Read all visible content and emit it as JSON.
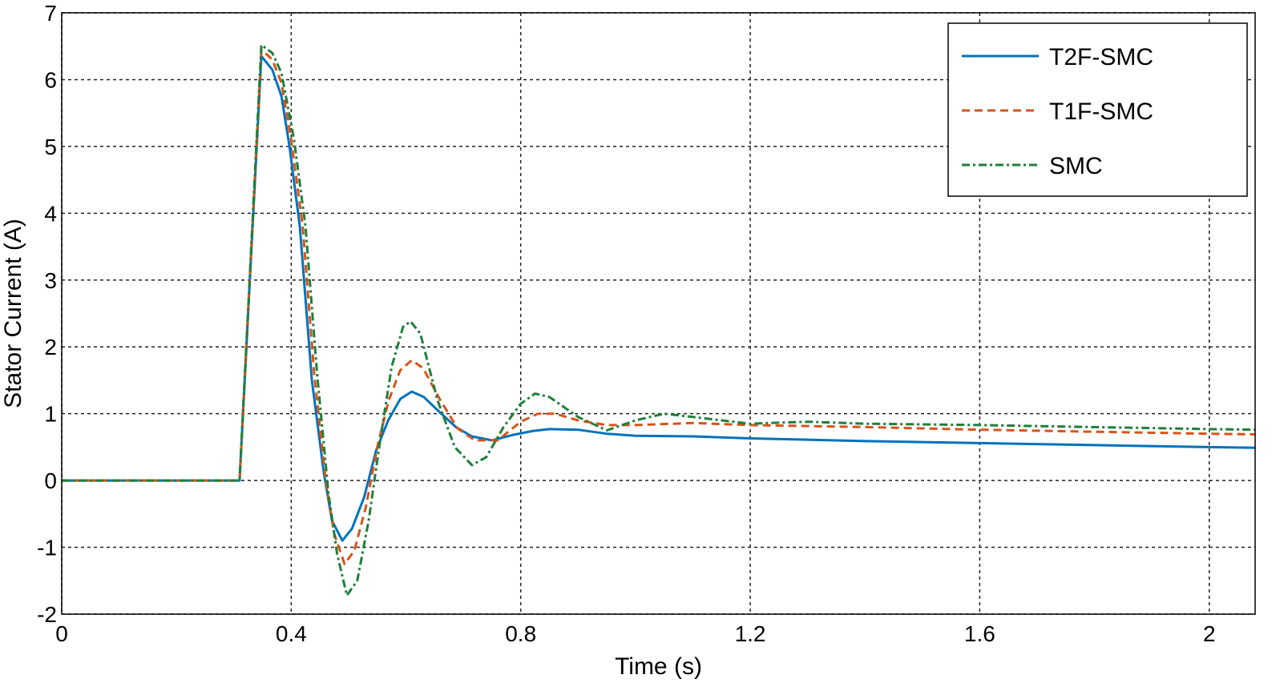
{
  "chart_data": {
    "type": "line",
    "title": "",
    "xlabel": "Time (s)",
    "ylabel": "Stator Current (A)",
    "xlim": [
      0,
      2.08
    ],
    "ylim": [
      -2,
      7
    ],
    "xticks": [
      0,
      0.4,
      0.8,
      1.2,
      1.6,
      2
    ],
    "xtick_labels": [
      "0",
      "0.4",
      "0.8",
      "1.2",
      "1.6",
      "2"
    ],
    "yticks": [
      -2,
      -1,
      0,
      1,
      2,
      3,
      4,
      5,
      6,
      7
    ],
    "ytick_labels": [
      "-2",
      "-1",
      "0",
      "1",
      "2",
      "3",
      "4",
      "5",
      "6",
      "7"
    ],
    "grid": true,
    "legend_placement": "top-right",
    "series": [
      {
        "name": "T2F-SMC",
        "color": "#0072BD",
        "style": "solid",
        "points": [
          [
            0,
            0
          ],
          [
            0.31,
            0
          ],
          [
            0.348,
            6.35
          ],
          [
            0.367,
            6.15
          ],
          [
            0.383,
            5.75
          ],
          [
            0.397,
            5.0
          ],
          [
            0.415,
            3.8
          ],
          [
            0.436,
            1.5
          ],
          [
            0.457,
            0.1
          ],
          [
            0.471,
            -0.6
          ],
          [
            0.489,
            -0.9
          ],
          [
            0.506,
            -0.72
          ],
          [
            0.527,
            -0.25
          ],
          [
            0.548,
            0.45
          ],
          [
            0.569,
            0.9
          ],
          [
            0.59,
            1.22
          ],
          [
            0.61,
            1.33
          ],
          [
            0.631,
            1.25
          ],
          [
            0.659,
            1.02
          ],
          [
            0.687,
            0.8
          ],
          [
            0.715,
            0.66
          ],
          [
            0.75,
            0.6
          ],
          [
            0.785,
            0.68
          ],
          [
            0.82,
            0.74
          ],
          [
            0.85,
            0.77
          ],
          [
            0.9,
            0.76
          ],
          [
            0.95,
            0.7
          ],
          [
            1.0,
            0.67
          ],
          [
            1.1,
            0.66
          ],
          [
            1.2,
            0.63
          ],
          [
            1.4,
            0.59
          ],
          [
            1.6,
            0.56
          ],
          [
            1.8,
            0.53
          ],
          [
            2.0,
            0.5
          ],
          [
            2.08,
            0.49
          ]
        ]
      },
      {
        "name": "T1F-SMC",
        "color": "#D95319",
        "style": "dashed",
        "points": [
          [
            0,
            0
          ],
          [
            0.31,
            0
          ],
          [
            0.348,
            6.45
          ],
          [
            0.367,
            6.3
          ],
          [
            0.383,
            5.95
          ],
          [
            0.4,
            5.1
          ],
          [
            0.42,
            3.8
          ],
          [
            0.44,
            1.6
          ],
          [
            0.46,
            0.0
          ],
          [
            0.475,
            -0.8
          ],
          [
            0.493,
            -1.25
          ],
          [
            0.51,
            -1.05
          ],
          [
            0.53,
            -0.4
          ],
          [
            0.55,
            0.5
          ],
          [
            0.57,
            1.2
          ],
          [
            0.59,
            1.65
          ],
          [
            0.61,
            1.8
          ],
          [
            0.63,
            1.68
          ],
          [
            0.66,
            1.2
          ],
          [
            0.69,
            0.78
          ],
          [
            0.72,
            0.6
          ],
          [
            0.76,
            0.6
          ],
          [
            0.8,
            0.88
          ],
          [
            0.83,
            1.0
          ],
          [
            0.86,
            1.0
          ],
          [
            0.9,
            0.9
          ],
          [
            0.95,
            0.83
          ],
          [
            1.0,
            0.83
          ],
          [
            1.1,
            0.86
          ],
          [
            1.2,
            0.83
          ],
          [
            1.4,
            0.8
          ],
          [
            1.6,
            0.76
          ],
          [
            1.8,
            0.73
          ],
          [
            2.0,
            0.7
          ],
          [
            2.08,
            0.69
          ]
        ]
      },
      {
        "name": "SMC",
        "color": "#1E7F3A",
        "style": "dashdot",
        "points": [
          [
            0,
            0
          ],
          [
            0.31,
            0
          ],
          [
            0.348,
            6.52
          ],
          [
            0.367,
            6.4
          ],
          [
            0.383,
            6.1
          ],
          [
            0.405,
            5.1
          ],
          [
            0.425,
            3.8
          ],
          [
            0.445,
            1.6
          ],
          [
            0.465,
            -0.2
          ],
          [
            0.48,
            -1.1
          ],
          [
            0.497,
            -1.72
          ],
          [
            0.515,
            -1.5
          ],
          [
            0.535,
            -0.6
          ],
          [
            0.555,
            0.6
          ],
          [
            0.575,
            1.7
          ],
          [
            0.595,
            2.3
          ],
          [
            0.608,
            2.38
          ],
          [
            0.625,
            2.2
          ],
          [
            0.655,
            1.2
          ],
          [
            0.685,
            0.5
          ],
          [
            0.715,
            0.23
          ],
          [
            0.74,
            0.35
          ],
          [
            0.77,
            0.8
          ],
          [
            0.8,
            1.15
          ],
          [
            0.825,
            1.3
          ],
          [
            0.85,
            1.25
          ],
          [
            0.9,
            0.95
          ],
          [
            0.95,
            0.75
          ],
          [
            1.0,
            0.9
          ],
          [
            1.05,
            1.0
          ],
          [
            1.1,
            0.95
          ],
          [
            1.2,
            0.85
          ],
          [
            1.3,
            0.88
          ],
          [
            1.4,
            0.85
          ],
          [
            1.6,
            0.83
          ],
          [
            1.8,
            0.8
          ],
          [
            2.0,
            0.77
          ],
          [
            2.08,
            0.76
          ]
        ]
      }
    ]
  }
}
